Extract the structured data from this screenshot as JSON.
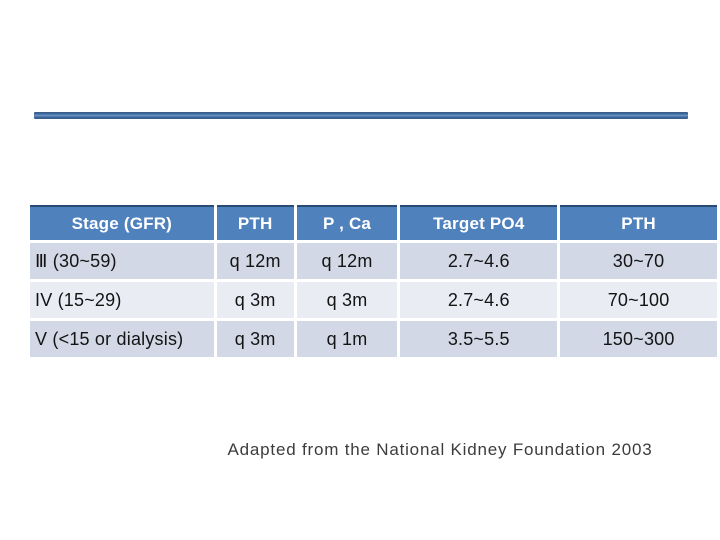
{
  "slide": {
    "background": "#ffffff",
    "divider_bar": {
      "color_dark": "#3a5f8c",
      "color_light": "#7397c6"
    }
  },
  "table": {
    "header_bg": "#4f81bd",
    "header_text_color": "#ffffff",
    "header_top_border": "#2b4c72",
    "band_dark": "#d2d8e5",
    "band_light": "#e9ecf3",
    "headers": [
      "Stage (GFR)",
      "PTH",
      "P , Ca",
      "Target PO4",
      "PTH"
    ],
    "rows": [
      {
        "cells": [
          "Ⅲ (30~59)",
          "q 12m",
          "q 12m",
          "2.7~4.6",
          "30~70"
        ]
      },
      {
        "cells": [
          "IV (15~29)",
          "q 3m",
          "q 3m",
          "2.7~4.6",
          "70~100"
        ]
      },
      {
        "cells": [
          "V (<15 or dialysis)",
          "q 3m",
          "q 1m",
          "3.5~5.5",
          "150~300"
        ]
      }
    ]
  },
  "footer": {
    "credit": "Adapted from the National Kidney Foundation 2003"
  }
}
